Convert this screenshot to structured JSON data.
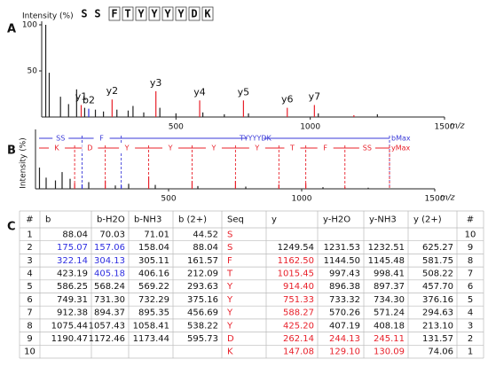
{
  "panel_labels": [
    "A",
    "B",
    "C"
  ],
  "sequence": [
    "S",
    "S",
    "F",
    "T",
    "Y",
    "Y",
    "Y",
    "Y",
    "D",
    "K"
  ],
  "chart_data": [
    {
      "type": "stem",
      "ylabel": "Intensity (%)",
      "xlabel": "m/z",
      "xlim": [
        0,
        1500
      ],
      "xticks": [
        500,
        1000,
        1500
      ],
      "ylim": [
        0,
        100
      ],
      "yticks": [
        50,
        100
      ],
      "x": [
        15,
        28,
        70,
        100,
        130,
        147.08,
        160,
        175.07,
        200,
        230,
        262.14,
        280,
        322,
        340,
        380,
        425.2,
        440,
        500,
        588.27,
        600,
        680,
        751.33,
        770,
        914.4,
        1015.45,
        1030,
        1162.5,
        1250
      ],
      "values": [
        100,
        48,
        22,
        14,
        30,
        13,
        10,
        9,
        8,
        6,
        19,
        8,
        7,
        12,
        5,
        28,
        10,
        4,
        18,
        5,
        3,
        18,
        4,
        10,
        13,
        4,
        2,
        3
      ],
      "colors": [
        "#222",
        "#222",
        "#222",
        "#222",
        "#222",
        "#e8202a",
        "#222",
        "#2e2ee0",
        "#222",
        "#222",
        "#e8202a",
        "#222",
        "#222",
        "#222",
        "#222",
        "#e8202a",
        "#222",
        "#222",
        "#e8202a",
        "#222",
        "#222",
        "#e8202a",
        "#222",
        "#e8202a",
        "#e8202a",
        "#222",
        "#e8202a",
        "#222"
      ],
      "peak_labels": [
        null,
        null,
        null,
        null,
        null,
        "y1",
        null,
        "b2",
        null,
        null,
        "y2",
        null,
        null,
        null,
        null,
        "y3",
        null,
        null,
        "y4",
        null,
        null,
        "y5",
        null,
        "y6",
        "y7",
        null,
        null,
        null
      ]
    },
    {
      "type": "stem",
      "ylabel": "Intensity (%)",
      "xlabel": "m/z",
      "xlim": [
        0,
        1500
      ],
      "xticks": [
        500,
        1000,
        1500
      ],
      "ylim": [
        0,
        100
      ],
      "x": [
        15,
        40,
        75,
        100,
        130,
        147.08,
        175.07,
        200,
        262.14,
        300,
        322.14,
        350,
        425.2,
        450,
        588.27,
        610,
        751.33,
        790,
        914.4,
        1015.45,
        1080,
        1162.5,
        1250
      ],
      "values": [
        38,
        20,
        15,
        30,
        18,
        10,
        8,
        12,
        15,
        6,
        6,
        9,
        22,
        7,
        14,
        5,
        14,
        4,
        8,
        10,
        3,
        3,
        2
      ],
      "colors": [
        "#222",
        "#222",
        "#222",
        "#222",
        "#222",
        "#e8202a",
        "#2e2ee0",
        "#222",
        "#e8202a",
        "#222",
        "#2e2ee0",
        "#222",
        "#e8202a",
        "#222",
        "#e8202a",
        "#222",
        "#e8202a",
        "#222",
        "#e8202a",
        "#e8202a",
        "#222",
        "#e8202a",
        "#222"
      ],
      "ladders": [
        {
          "color": "#3a3ad8",
          "labels": [
            "SS",
            "F",
            "TYYYYDK",
            "bMax"
          ],
          "breaks": [
            175.07,
            322.14,
            1330
          ]
        },
        {
          "color": "#e8202a",
          "labels": [
            "K",
            "D",
            "Y",
            "Y",
            "Y",
            "Y",
            "T",
            "F",
            "SS",
            "yMax"
          ],
          "breaks": [
            147.08,
            262.14,
            425.2,
            588.27,
            751.33,
            914.4,
            1015.45,
            1162.5,
            1330
          ]
        }
      ]
    }
  ],
  "table": {
    "header": [
      "#",
      "b",
      "b-H2O",
      "b-NH3",
      "b (2+)",
      "Seq",
      "y",
      "y-H2O",
      "y-NH3",
      "y (2+)",
      "#"
    ],
    "rows": [
      [
        "1",
        "88.04",
        "70.03",
        "71.01",
        "44.52",
        {
          "text": "S",
          "color": "#e8202a"
        },
        null,
        null,
        null,
        null,
        "10"
      ],
      [
        "2",
        {
          "text": "175.07",
          "color": "#2e2ee0"
        },
        {
          "text": "157.06",
          "color": "#2e2ee0"
        },
        "158.04",
        "88.04",
        {
          "text": "S",
          "color": "#e8202a"
        },
        "1249.54",
        "1231.53",
        "1232.51",
        "625.27",
        "9"
      ],
      [
        "3",
        {
          "text": "322.14",
          "color": "#2e2ee0"
        },
        {
          "text": "304.13",
          "color": "#2e2ee0"
        },
        "305.11",
        "161.57",
        {
          "text": "F",
          "color": "#e8202a"
        },
        {
          "text": "1162.50",
          "color": "#e8202a"
        },
        "1144.50",
        "1145.48",
        "581.75",
        "8"
      ],
      [
        "4",
        "423.19",
        {
          "text": "405.18",
          "color": "#2e2ee0"
        },
        "406.16",
        "212.09",
        {
          "text": "T",
          "color": "#e8202a"
        },
        {
          "text": "1015.45",
          "color": "#e8202a"
        },
        "997.43",
        "998.41",
        "508.22",
        "7"
      ],
      [
        "5",
        "586.25",
        "568.24",
        "569.22",
        "293.63",
        {
          "text": "Y",
          "color": "#e8202a"
        },
        {
          "text": "914.40",
          "color": "#e8202a"
        },
        "896.38",
        "897.37",
        "457.70",
        "6"
      ],
      [
        "6",
        "749.31",
        "731.30",
        "732.29",
        "375.16",
        {
          "text": "Y",
          "color": "#e8202a"
        },
        {
          "text": "751.33",
          "color": "#e8202a"
        },
        "733.32",
        "734.30",
        "376.16",
        "5"
      ],
      [
        "7",
        "912.38",
        "894.37",
        "895.35",
        "456.69",
        {
          "text": "Y",
          "color": "#e8202a"
        },
        {
          "text": "588.27",
          "color": "#e8202a"
        },
        "570.26",
        "571.24",
        "294.63",
        "4"
      ],
      [
        "8",
        "1075.44",
        "1057.43",
        "1058.41",
        "538.22",
        {
          "text": "Y",
          "color": "#e8202a"
        },
        {
          "text": "425.20",
          "color": "#e8202a"
        },
        "407.19",
        "408.18",
        "213.10",
        "3"
      ],
      [
        "9",
        "1190.47",
        "1172.46",
        "1173.44",
        "595.73",
        {
          "text": "D",
          "color": "#e8202a"
        },
        {
          "text": "262.14",
          "color": "#e8202a"
        },
        {
          "text": "244.13",
          "color": "#e8202a"
        },
        {
          "text": "245.11",
          "color": "#e8202a"
        },
        "131.57",
        "2"
      ],
      [
        "10",
        null,
        null,
        null,
        null,
        {
          "text": "K",
          "color": "#e8202a"
        },
        {
          "text": "147.08",
          "color": "#e8202a"
        },
        {
          "text": "129.10",
          "color": "#e8202a"
        },
        {
          "text": "130.09",
          "color": "#e8202a"
        },
        "74.06",
        "1"
      ]
    ]
  }
}
